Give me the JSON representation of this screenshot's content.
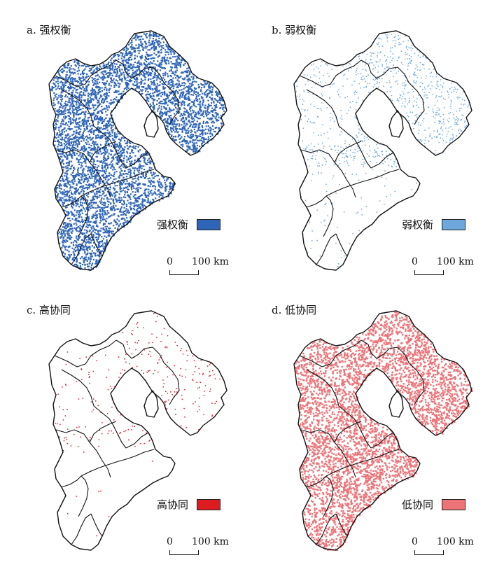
{
  "panels": [
    {
      "title": "a. 强权衡",
      "legend_label": "强权衡",
      "color": "#2e65b8",
      "density": "very-high",
      "region": "full"
    },
    {
      "title": "b. 弱权衡",
      "legend_label": "弱权衡",
      "color": "#6ea7dc",
      "density": "low",
      "region": "north"
    },
    {
      "title": "c. 高协同",
      "legend_label": "高协同",
      "color": "#dd1c22",
      "density": "very-low",
      "region": "north"
    },
    {
      "title": "d. 低协同",
      "legend_label": "低协同",
      "color": "#ec7478",
      "density": "high",
      "region": "full"
    }
  ],
  "scale": {
    "zero": "0",
    "label": "100 km"
  }
}
